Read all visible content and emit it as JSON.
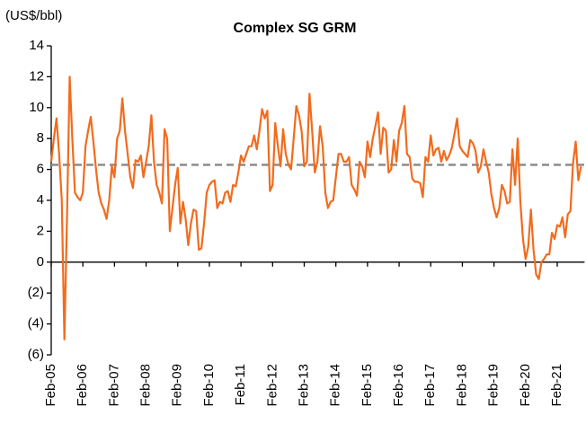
{
  "chart_data": {
    "type": "line",
    "title": "Complex SG GRM",
    "y_label": "(US$/bbl)",
    "categories": [
      "Feb-05",
      null,
      null,
      null,
      null,
      null,
      null,
      null,
      null,
      null,
      null,
      null,
      "Feb-06",
      null,
      null,
      null,
      null,
      null,
      null,
      null,
      null,
      null,
      null,
      null,
      "Feb-07",
      null,
      null,
      null,
      null,
      null,
      null,
      null,
      null,
      null,
      null,
      null,
      "Feb-08",
      null,
      null,
      null,
      null,
      null,
      null,
      null,
      null,
      null,
      null,
      null,
      "Feb-09",
      null,
      null,
      null,
      null,
      null,
      null,
      null,
      null,
      null,
      null,
      null,
      "Feb-10",
      null,
      null,
      null,
      null,
      null,
      null,
      null,
      null,
      null,
      null,
      null,
      "Feb-11",
      null,
      null,
      null,
      null,
      null,
      null,
      null,
      null,
      null,
      null,
      null,
      "Feb-12",
      null,
      null,
      null,
      null,
      null,
      null,
      null,
      null,
      null,
      null,
      null,
      "Feb-13",
      null,
      null,
      null,
      null,
      null,
      null,
      null,
      null,
      null,
      null,
      null,
      "Feb-14",
      null,
      null,
      null,
      null,
      null,
      null,
      null,
      null,
      null,
      null,
      null,
      "Feb-15",
      null,
      null,
      null,
      null,
      null,
      null,
      null,
      null,
      null,
      null,
      null,
      "Feb-16",
      null,
      null,
      null,
      null,
      null,
      null,
      null,
      null,
      null,
      null,
      null,
      "Feb-17",
      null,
      null,
      null,
      null,
      null,
      null,
      null,
      null,
      null,
      null,
      null,
      "Feb-18",
      null,
      null,
      null,
      null,
      null,
      null,
      null,
      null,
      null,
      null,
      null,
      "Feb-19",
      null,
      null,
      null,
      null,
      null,
      null,
      null,
      null,
      null,
      null,
      null,
      "Feb-20",
      null,
      null,
      null,
      null,
      null,
      null,
      null,
      null,
      null,
      null,
      null,
      "Feb-21",
      null,
      null,
      null,
      null,
      null,
      null,
      null,
      null,
      null
    ],
    "series": [
      {
        "name": "Complex SG GRM",
        "color": "#f26b1d",
        "values": [
          6.5,
          8,
          9.3,
          7,
          4,
          -5,
          3,
          12,
          8,
          4.5,
          4.2,
          4.0,
          4.5,
          7.5,
          8.5,
          9.4,
          7.8,
          6,
          4.5,
          3.8,
          3.4,
          2.8,
          4,
          6.2,
          5.5,
          8,
          8.5,
          10.6,
          8.5,
          7,
          5.5,
          4.8,
          6.6,
          6.5,
          6.9,
          5.5,
          6.5,
          7.5,
          9.5,
          6.5,
          5,
          4.5,
          3.8,
          8.6,
          8,
          2,
          3.5,
          5,
          6.1,
          2.5,
          3.9,
          2.8,
          1.1,
          2.5,
          3.4,
          3.3,
          0.8,
          0.9,
          2.5,
          4.5,
          5,
          5.2,
          5.3,
          3.5,
          3.9,
          3.8,
          4.5,
          4.6,
          3.9,
          5,
          4.9,
          5.8,
          6.9,
          6.5,
          7,
          7.5,
          7.5,
          8.2,
          7.3,
          8.5,
          9.9,
          9.3,
          9.8,
          4.6,
          5,
          9,
          7.5,
          6.2,
          8.6,
          7,
          6.3,
          6,
          8,
          10.1,
          9.5,
          8.5,
          6.2,
          6.5,
          10.9,
          8.5,
          5.8,
          6.5,
          8.8,
          7.5,
          4.5,
          3.5,
          3.9,
          4.0,
          5.5,
          7,
          7,
          6.5,
          6.5,
          6.8,
          5,
          4.7,
          4.3,
          6.5,
          6.2,
          5.5,
          7.8,
          6.8,
          8,
          8.8,
          9.7,
          7,
          8.7,
          8.5,
          5.8,
          6,
          7.9,
          6.5,
          8.5,
          9,
          10.1,
          7,
          6.8,
          5.4,
          5.2,
          5.2,
          5.1,
          4.2,
          6.8,
          6.5,
          8.2,
          6.9,
          7.3,
          7.4,
          6.5,
          7.2,
          6.6,
          6.9,
          7.4,
          8.3,
          9.3,
          7.5,
          7.2,
          7.0,
          6.8,
          7.9,
          7.7,
          7.2,
          5.8,
          6.2,
          7.3,
          6.5,
          5.8,
          4.4,
          3.5,
          2.9,
          3.5,
          5,
          4.6,
          3.8,
          3.9,
          7.3,
          5,
          8,
          3.9,
          1.5,
          0.2,
          1,
          3.4,
          0.8,
          -0.8,
          -1.1,
          0,
          0.2,
          0.5,
          0.5,
          1.9,
          1.5,
          2.4,
          2.3,
          2.9,
          1.6,
          3.1,
          3.3,
          6.4,
          7.8,
          5.3,
          6.2
        ]
      }
    ],
    "reference_line": {
      "value": 6.3,
      "color": "#8c8c8c",
      "dashed": true
    },
    "ylim": [
      -6,
      14
    ],
    "yticks": [
      {
        "value": -6,
        "label": "(6)"
      },
      {
        "value": -4,
        "label": "(4)"
      },
      {
        "value": -2,
        "label": "(2)"
      },
      0,
      2,
      4,
      6,
      8,
      10,
      12,
      14
    ],
    "grid": false
  }
}
